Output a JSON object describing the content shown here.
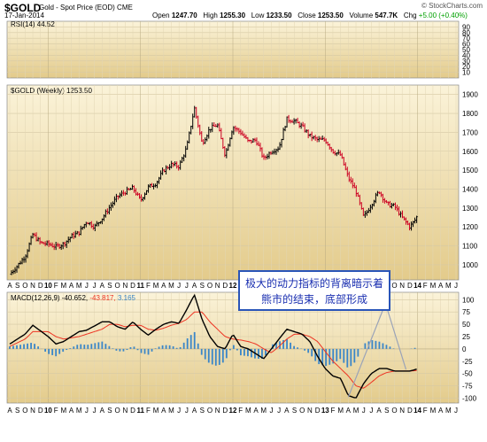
{
  "header": {
    "symbol": "$GOLD",
    "name": "Gold - Spot Price (EOD)",
    "exchange": "CME",
    "date": "17-Jan-2014",
    "open_label": "Open",
    "open": "1247.70",
    "high_label": "High",
    "high": "1255.30",
    "low_label": "Low",
    "low": "1233.50",
    "close_label": "Close",
    "close": "1253.50",
    "volume_label": "Volume",
    "volume": "547.7K",
    "chg_label": "Chg",
    "chg": "+5.00 (+0.40%)",
    "brand": "© StockCharts.com"
  },
  "callout": {
    "line1": "极大的动力指标的背离暗示着",
    "line2": "熊市的结束，底部形成"
  },
  "colors": {
    "background_gradient_top": "#fbf3d9",
    "background_gradient_bottom": "#e3cb8b",
    "up_bar": "#000000",
    "down_bar": "#cc0022",
    "macd_line": "#000000",
    "signal_line": "#ee3322",
    "histogram": "#3a86c8",
    "callout_border": "#2a55b8"
  },
  "chart_data": [
    {
      "type": "line",
      "panel": "rsi",
      "label": "RSI(14) 44.52",
      "y_ticks": [
        10,
        20,
        30,
        40,
        50,
        60,
        70,
        80,
        90
      ],
      "ylim": [
        0,
        100
      ],
      "last_value": 44.52
    },
    {
      "type": "bar",
      "style": "ohlc",
      "panel": "price",
      "label": "$GOLD (Weekly) 1253.50",
      "y_ticks": [
        1000,
        1100,
        1200,
        1300,
        1400,
        1500,
        1600,
        1700,
        1800,
        1900
      ],
      "ylim": [
        920,
        1950
      ],
      "x_labels": [
        "A",
        "S",
        "O",
        "N",
        "D",
        "10",
        "F",
        "M",
        "A",
        "M",
        "J",
        "J",
        "A",
        "S",
        "O",
        "N",
        "D",
        "11",
        "F",
        "M",
        "A",
        "M",
        "J",
        "J",
        "A",
        "S",
        "O",
        "N",
        "D",
        "12",
        "F",
        "M",
        "A",
        "M",
        "J",
        "J",
        "A",
        "S",
        "O",
        "N",
        "D",
        "13",
        "F",
        "M",
        "A",
        "M",
        "J",
        "J",
        "A",
        "S",
        "O",
        "N",
        "D",
        "14",
        "F",
        "M",
        "A",
        "M",
        "J"
      ],
      "year_labels": [
        "10",
        "11",
        "12",
        "13",
        "14"
      ],
      "x_domain_months": [
        0,
        58
      ],
      "path_months": [
        0,
        1,
        2,
        3,
        4,
        5,
        6,
        7,
        8,
        9,
        10,
        11,
        12,
        13,
        14,
        15,
        16,
        17,
        18,
        19,
        20,
        21,
        22,
        23,
        24,
        25,
        26,
        27,
        28,
        29,
        30,
        31,
        32,
        33,
        34,
        35,
        36,
        37,
        38,
        39,
        40,
        41,
        42,
        43,
        44,
        45,
        46,
        47,
        48,
        49,
        50,
        51,
        52,
        53
      ],
      "path_close": [
        950,
        995,
        1045,
        1160,
        1115,
        1110,
        1095,
        1110,
        1150,
        1170,
        1230,
        1200,
        1245,
        1305,
        1360,
        1385,
        1405,
        1340,
        1410,
        1430,
        1500,
        1530,
        1520,
        1620,
        1830,
        1640,
        1720,
        1740,
        1580,
        1730,
        1700,
        1650,
        1660,
        1560,
        1600,
        1620,
        1770,
        1760,
        1730,
        1680,
        1660,
        1660,
        1600,
        1580,
        1460,
        1390,
        1250,
        1320,
        1390,
        1320,
        1310,
        1250,
        1200,
        1253.5
      ],
      "last_close": 1253.5
    },
    {
      "type": "line",
      "panel": "macd",
      "label": "MACD(12,26,9)",
      "values_text": {
        "macd": "-40.652",
        "signal": "-43.817",
        "histogram": "3.165"
      },
      "y_ticks": [
        -100,
        -75,
        -50,
        -25,
        0,
        25,
        50,
        75,
        100
      ],
      "ylim": [
        -110,
        115
      ],
      "x_labels": [
        "A",
        "S",
        "O",
        "N",
        "D",
        "10",
        "F",
        "M",
        "A",
        "M",
        "J",
        "J",
        "A",
        "S",
        "O",
        "N",
        "D",
        "11",
        "F",
        "M",
        "A",
        "M",
        "J",
        "J",
        "A",
        "S",
        "O",
        "N",
        "D",
        "12",
        "F",
        "M",
        "A",
        "M",
        "J",
        "J",
        "A",
        "S",
        "O",
        "N",
        "D",
        "13",
        "F",
        "M",
        "A",
        "M",
        "J",
        "J",
        "A",
        "S",
        "O",
        "N",
        "D",
        "14",
        "F",
        "M",
        "A",
        "M",
        "J"
      ],
      "series": [
        {
          "name": "MACD",
          "x": [
            0,
            2,
            3,
            5,
            6,
            7,
            9,
            10,
            12,
            13,
            14,
            15,
            16,
            17,
            18,
            19,
            20,
            21,
            22,
            23,
            24,
            25,
            26,
            27,
            28,
            29,
            30,
            31,
            32,
            33,
            34,
            35,
            36,
            37,
            38,
            39,
            40,
            41,
            42,
            43,
            44,
            45,
            46,
            47,
            48,
            49,
            50,
            51,
            52,
            53
          ],
          "values": [
            10,
            30,
            48,
            25,
            10,
            15,
            35,
            38,
            55,
            55,
            45,
            40,
            55,
            40,
            28,
            40,
            50,
            55,
            52,
            80,
            110,
            60,
            25,
            5,
            0,
            30,
            5,
            0,
            -10,
            -20,
            0,
            20,
            40,
            35,
            30,
            15,
            -15,
            -40,
            -55,
            -60,
            -95,
            -100,
            -70,
            -50,
            -40,
            -40,
            -45,
            -45,
            -45,
            -40.65
          ]
        },
        {
          "name": "Signal",
          "x": [
            0,
            2,
            3,
            5,
            6,
            7,
            9,
            10,
            12,
            13,
            14,
            15,
            16,
            17,
            18,
            19,
            20,
            21,
            22,
            23,
            24,
            25,
            26,
            27,
            28,
            29,
            30,
            31,
            32,
            33,
            34,
            35,
            36,
            37,
            38,
            39,
            40,
            41,
            42,
            43,
            44,
            45,
            46,
            47,
            48,
            49,
            50,
            51,
            52,
            53
          ],
          "values": [
            5,
            20,
            35,
            35,
            25,
            20,
            25,
            30,
            40,
            50,
            50,
            45,
            48,
            48,
            40,
            38,
            42,
            48,
            52,
            60,
            75,
            75,
            55,
            40,
            25,
            20,
            18,
            15,
            10,
            0,
            -8,
            5,
            20,
            30,
            30,
            25,
            15,
            -5,
            -25,
            -40,
            -55,
            -75,
            -80,
            -68,
            -55,
            -48,
            -45,
            -45,
            -45,
            -43.82
          ]
        },
        {
          "name": "Histogram",
          "type": "bar",
          "x": [
            0,
            2,
            3,
            5,
            6,
            7,
            9,
            10,
            12,
            13,
            14,
            15,
            16,
            17,
            18,
            19,
            20,
            21,
            22,
            23,
            24,
            25,
            26,
            27,
            28,
            29,
            30,
            31,
            32,
            33,
            34,
            35,
            36,
            37,
            38,
            39,
            40,
            41,
            42,
            43,
            44,
            45,
            46,
            47,
            48,
            49,
            50,
            51,
            52,
            53
          ],
          "values": [
            5,
            10,
            13,
            -10,
            -15,
            -5,
            10,
            8,
            15,
            5,
            -5,
            -5,
            7,
            -8,
            -12,
            2,
            8,
            7,
            0,
            20,
            35,
            -15,
            -30,
            -35,
            -25,
            10,
            -13,
            -15,
            -20,
            -20,
            8,
            15,
            20,
            5,
            0,
            -10,
            -30,
            -35,
            -30,
            -20,
            -40,
            -25,
            10,
            18,
            15,
            8,
            0,
            0,
            0,
            3.17
          ]
        }
      ]
    }
  ]
}
